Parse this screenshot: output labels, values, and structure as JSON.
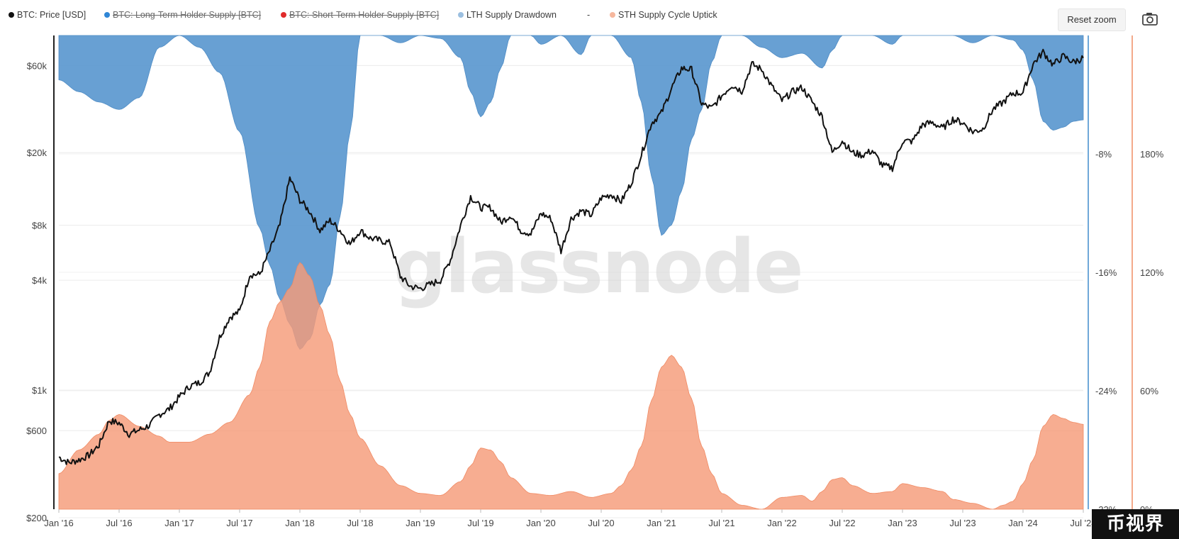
{
  "toolbar": {
    "reset_zoom_label": "Reset zoom",
    "camera_icon": "camera-icon"
  },
  "legend": [
    {
      "label": "BTC: Price [USD]",
      "color": "#111111",
      "hidden": false
    },
    {
      "label": "BTC: Long-Term Holder Supply [BTC]",
      "color": "#2f86d6",
      "hidden": true
    },
    {
      "label": "BTC: Short-Term Holder Supply [BTC]",
      "color": "#e02b2b",
      "hidden": true
    },
    {
      "label": "LTH Supply Drawdown",
      "color": "#9bbfe0",
      "hidden": false
    },
    {
      "label": "-",
      "color": "",
      "hidden": false
    },
    {
      "label": "STH Supply Cycle Uptick",
      "color": "#f6b79d",
      "hidden": false
    }
  ],
  "watermark": "glassnode",
  "corner_badge": "币视界",
  "chart_data": {
    "type": "line",
    "x_ticks": [
      "Jan '16",
      "Jul '16",
      "Jan '17",
      "Jul '17",
      "Jan '18",
      "Jul '18",
      "Jan '19",
      "Jul '19",
      "Jan '20",
      "Jul '20",
      "Jan '21",
      "Jul '21",
      "Jan '22",
      "Jul '22",
      "Jan '23",
      "Jul '23",
      "Jan '24",
      "Jul '24"
    ],
    "x_range": [
      "2016-01",
      "2024-07"
    ],
    "price_axis": {
      "scale": "log",
      "ticks": [
        {
          "label": "$200",
          "value": 200
        },
        {
          "label": "$600",
          "value": 600
        },
        {
          "label": "$1k",
          "value": 1000
        },
        {
          "label": "$4k",
          "value": 4000
        },
        {
          "label": "$8k",
          "value": 8000
        },
        {
          "label": "$20k",
          "value": 20000
        },
        {
          "label": "$60k",
          "value": 60000
        }
      ],
      "range": [
        200,
        100000
      ]
    },
    "lth_axis": {
      "ticks": [
        {
          "label": "-8%",
          "value": -8
        },
        {
          "label": "-16%",
          "value": -16
        },
        {
          "label": "-24%",
          "value": -24
        },
        {
          "label": "-32%",
          "value": -32
        }
      ],
      "range": [
        -32,
        0
      ],
      "color": "#6fa8d9"
    },
    "sth_axis": {
      "ticks": [
        {
          "label": "0%",
          "value": 0
        },
        {
          "label": "60%",
          "value": 60
        },
        {
          "label": "120%",
          "value": 120
        },
        {
          "label": "180%",
          "value": 180
        }
      ],
      "range": [
        0,
        240
      ],
      "color": "#f3a98a"
    },
    "series": [
      {
        "name": "BTC: Price [USD]",
        "color": "#111111",
        "points": [
          [
            "2016-01",
            430
          ],
          [
            "2016-02",
            400
          ],
          [
            "2016-03",
            415
          ],
          [
            "2016-04",
            440
          ],
          [
            "2016-05",
            500
          ],
          [
            "2016-06",
            680
          ],
          [
            "2016-07",
            660
          ],
          [
            "2016-08",
            575
          ],
          [
            "2016-09",
            605
          ],
          [
            "2016-10",
            640
          ],
          [
            "2016-11",
            735
          ],
          [
            "2016-12",
            790
          ],
          [
            "2017-01",
            920
          ],
          [
            "2017-02",
            1050
          ],
          [
            "2017-03",
            1100
          ],
          [
            "2017-04",
            1250
          ],
          [
            "2017-05",
            1950
          ],
          [
            "2017-06",
            2500
          ],
          [
            "2017-07",
            2700
          ],
          [
            "2017-08",
            4300
          ],
          [
            "2017-09",
            4300
          ],
          [
            "2017-10",
            5800
          ],
          [
            "2017-11",
            8000
          ],
          [
            "2017-12",
            14500
          ],
          [
            "2018-01",
            11000
          ],
          [
            "2018-02",
            9500
          ],
          [
            "2018-03",
            7500
          ],
          [
            "2018-04",
            8500
          ],
          [
            "2018-05",
            7500
          ],
          [
            "2018-06",
            6300
          ],
          [
            "2018-07",
            7500
          ],
          [
            "2018-08",
            6800
          ],
          [
            "2018-09",
            6600
          ],
          [
            "2018-10",
            6400
          ],
          [
            "2018-11",
            4200
          ],
          [
            "2018-12",
            3700
          ],
          [
            "2019-01",
            3600
          ],
          [
            "2019-02",
            3800
          ],
          [
            "2019-03",
            4000
          ],
          [
            "2019-04",
            5200
          ],
          [
            "2019-05",
            8000
          ],
          [
            "2019-06",
            11500
          ],
          [
            "2019-07",
            10000
          ],
          [
            "2019-08",
            10000
          ],
          [
            "2019-09",
            8300
          ],
          [
            "2019-10",
            9100
          ],
          [
            "2019-11",
            7500
          ],
          [
            "2019-12",
            7200
          ],
          [
            "2020-01",
            9300
          ],
          [
            "2020-02",
            8700
          ],
          [
            "2020-03",
            5800
          ],
          [
            "2020-04",
            8700
          ],
          [
            "2020-05",
            9600
          ],
          [
            "2020-06",
            9100
          ],
          [
            "2020-07",
            11300
          ],
          [
            "2020-08",
            11800
          ],
          [
            "2020-09",
            10800
          ],
          [
            "2020-10",
            13700
          ],
          [
            "2020-11",
            19500
          ],
          [
            "2020-12",
            29000
          ],
          [
            "2021-01",
            33000
          ],
          [
            "2021-02",
            45000
          ],
          [
            "2021-03",
            58000
          ],
          [
            "2021-04",
            57000
          ],
          [
            "2021-05",
            37000
          ],
          [
            "2021-06",
            35000
          ],
          [
            "2021-07",
            41000
          ],
          [
            "2021-08",
            47000
          ],
          [
            "2021-09",
            43500
          ],
          [
            "2021-10",
            61000
          ],
          [
            "2021-11",
            57000
          ],
          [
            "2021-12",
            46000
          ],
          [
            "2022-01",
            38500
          ],
          [
            "2022-02",
            43000
          ],
          [
            "2022-03",
            45500
          ],
          [
            "2022-04",
            38000
          ],
          [
            "2022-05",
            31500
          ],
          [
            "2022-06",
            20000
          ],
          [
            "2022-07",
            23300
          ],
          [
            "2022-08",
            20000
          ],
          [
            "2022-09",
            19400
          ],
          [
            "2022-10",
            20500
          ],
          [
            "2022-11",
            17000
          ],
          [
            "2022-12",
            16500
          ],
          [
            "2023-01",
            23100
          ],
          [
            "2023-02",
            23100
          ],
          [
            "2023-03",
            28500
          ],
          [
            "2023-04",
            29200
          ],
          [
            "2023-05",
            27200
          ],
          [
            "2023-06",
            30500
          ],
          [
            "2023-07",
            29200
          ],
          [
            "2023-08",
            26000
          ],
          [
            "2023-09",
            27000
          ],
          [
            "2023-10",
            34500
          ],
          [
            "2023-11",
            37700
          ],
          [
            "2023-12",
            42300
          ],
          [
            "2024-01",
            42600
          ],
          [
            "2024-02",
            61200
          ],
          [
            "2024-03",
            71300
          ],
          [
            "2024-04",
            60600
          ],
          [
            "2024-05",
            67500
          ],
          [
            "2024-06",
            62700
          ],
          [
            "2024-07",
            66000
          ]
        ]
      },
      {
        "name": "LTH Supply Drawdown",
        "color": "#5b98cf",
        "axis": "lth",
        "points": [
          [
            "2016-01",
            -3
          ],
          [
            "2016-03",
            -3.8
          ],
          [
            "2016-05",
            -4.5
          ],
          [
            "2016-07",
            -5
          ],
          [
            "2016-09",
            -4.2
          ],
          [
            "2016-11",
            -0.8
          ],
          [
            "2017-01",
            0
          ],
          [
            "2017-03",
            -0.8
          ],
          [
            "2017-05",
            -2.5
          ],
          [
            "2017-07",
            -6.5
          ],
          [
            "2017-09",
            -13
          ],
          [
            "2017-10",
            -15.5
          ],
          [
            "2017-11",
            -17.8
          ],
          [
            "2017-12",
            -19.5
          ],
          [
            "2018-01",
            -21.2
          ],
          [
            "2018-02",
            -20.5
          ],
          [
            "2018-03",
            -18.2
          ],
          [
            "2018-04",
            -16.8
          ],
          [
            "2018-05",
            -12.2
          ],
          [
            "2018-06",
            -6.5
          ],
          [
            "2018-07",
            0
          ],
          [
            "2018-09",
            0
          ],
          [
            "2018-11",
            -0.5
          ],
          [
            "2019-01",
            0
          ],
          [
            "2019-03",
            -0.2
          ],
          [
            "2019-05",
            -1.5
          ],
          [
            "2019-06",
            -3.8
          ],
          [
            "2019-07",
            -5.5
          ],
          [
            "2019-08",
            -4.5
          ],
          [
            "2019-09",
            -2.2
          ],
          [
            "2019-10",
            0
          ],
          [
            "2019-12",
            0
          ],
          [
            "2020-01",
            -0.6
          ],
          [
            "2020-03",
            0
          ],
          [
            "2020-05",
            -1.3
          ],
          [
            "2020-06",
            0
          ],
          [
            "2020-08",
            0
          ],
          [
            "2020-10",
            -1.5
          ],
          [
            "2020-11",
            -4.5
          ],
          [
            "2020-12",
            -9.5
          ],
          [
            "2021-01",
            -13.5
          ],
          [
            "2021-02",
            -12.8
          ],
          [
            "2021-03",
            -10.5
          ],
          [
            "2021-04",
            -7
          ],
          [
            "2021-05",
            -5
          ],
          [
            "2021-06",
            -1.8
          ],
          [
            "2021-07",
            0
          ],
          [
            "2021-09",
            0
          ],
          [
            "2021-11",
            -0.8
          ],
          [
            "2022-01",
            -1.5
          ],
          [
            "2022-03",
            -1.2
          ],
          [
            "2022-05",
            -2.2
          ],
          [
            "2022-06",
            -1
          ],
          [
            "2022-07",
            0
          ],
          [
            "2022-10",
            0
          ],
          [
            "2022-12",
            -0.6
          ],
          [
            "2023-01",
            0
          ],
          [
            "2023-06",
            0
          ],
          [
            "2023-08",
            -0.5
          ],
          [
            "2023-10",
            0
          ],
          [
            "2023-12",
            -0.3
          ],
          [
            "2024-01",
            -1
          ],
          [
            "2024-02",
            -3
          ],
          [
            "2024-03",
            -5.8
          ],
          [
            "2024-04",
            -6.4
          ],
          [
            "2024-05",
            -6.2
          ],
          [
            "2024-06",
            -5.8
          ],
          [
            "2024-07",
            -5.7
          ]
        ]
      },
      {
        "name": "STH Supply Cycle Uptick",
        "color": "#f59b79",
        "axis": "sth",
        "points": [
          [
            "2016-01",
            18
          ],
          [
            "2016-03",
            30
          ],
          [
            "2016-05",
            38
          ],
          [
            "2016-06",
            45
          ],
          [
            "2016-07",
            48
          ],
          [
            "2016-09",
            42
          ],
          [
            "2016-11",
            37
          ],
          [
            "2016-12",
            34
          ],
          [
            "2017-02",
            34
          ],
          [
            "2017-04",
            38
          ],
          [
            "2017-06",
            44
          ],
          [
            "2017-08",
            58
          ],
          [
            "2017-09",
            72
          ],
          [
            "2017-10",
            95
          ],
          [
            "2017-11",
            105
          ],
          [
            "2017-12",
            112
          ],
          [
            "2018-01",
            125
          ],
          [
            "2018-02",
            118
          ],
          [
            "2018-03",
            103
          ],
          [
            "2018-04",
            88
          ],
          [
            "2018-05",
            65
          ],
          [
            "2018-06",
            48
          ],
          [
            "2018-07",
            36
          ],
          [
            "2018-09",
            22
          ],
          [
            "2018-11",
            12
          ],
          [
            "2019-01",
            8
          ],
          [
            "2019-03",
            7
          ],
          [
            "2019-05",
            14
          ],
          [
            "2019-06",
            22
          ],
          [
            "2019-07",
            31
          ],
          [
            "2019-08",
            30
          ],
          [
            "2019-09",
            24
          ],
          [
            "2019-10",
            16
          ],
          [
            "2019-12",
            8
          ],
          [
            "2020-02",
            7
          ],
          [
            "2020-04",
            9
          ],
          [
            "2020-06",
            6
          ],
          [
            "2020-08",
            8
          ],
          [
            "2020-09",
            12
          ],
          [
            "2020-10",
            20
          ],
          [
            "2020-11",
            32
          ],
          [
            "2020-12",
            55
          ],
          [
            "2021-01",
            72
          ],
          [
            "2021-02",
            78
          ],
          [
            "2021-03",
            72
          ],
          [
            "2021-04",
            56
          ],
          [
            "2021-05",
            32
          ],
          [
            "2021-06",
            18
          ],
          [
            "2021-07",
            8
          ],
          [
            "2021-09",
            2
          ],
          [
            "2021-11",
            0
          ],
          [
            "2022-01",
            6
          ],
          [
            "2022-03",
            7
          ],
          [
            "2022-04",
            4
          ],
          [
            "2022-05",
            9
          ],
          [
            "2022-06",
            15
          ],
          [
            "2022-07",
            16
          ],
          [
            "2022-08",
            12
          ],
          [
            "2022-10",
            8
          ],
          [
            "2022-12",
            9
          ],
          [
            "2023-01",
            13
          ],
          [
            "2023-03",
            11
          ],
          [
            "2023-05",
            9
          ],
          [
            "2023-06",
            5
          ],
          [
            "2023-08",
            3
          ],
          [
            "2023-10",
            0
          ],
          [
            "2023-11",
            2
          ],
          [
            "2023-12",
            4
          ],
          [
            "2024-01",
            13
          ],
          [
            "2024-02",
            25
          ],
          [
            "2024-03",
            42
          ],
          [
            "2024-04",
            48
          ],
          [
            "2024-05",
            46
          ],
          [
            "2024-06",
            44
          ],
          [
            "2024-07",
            43
          ]
        ]
      }
    ],
    "grid": true,
    "legend_position": "top-left"
  }
}
